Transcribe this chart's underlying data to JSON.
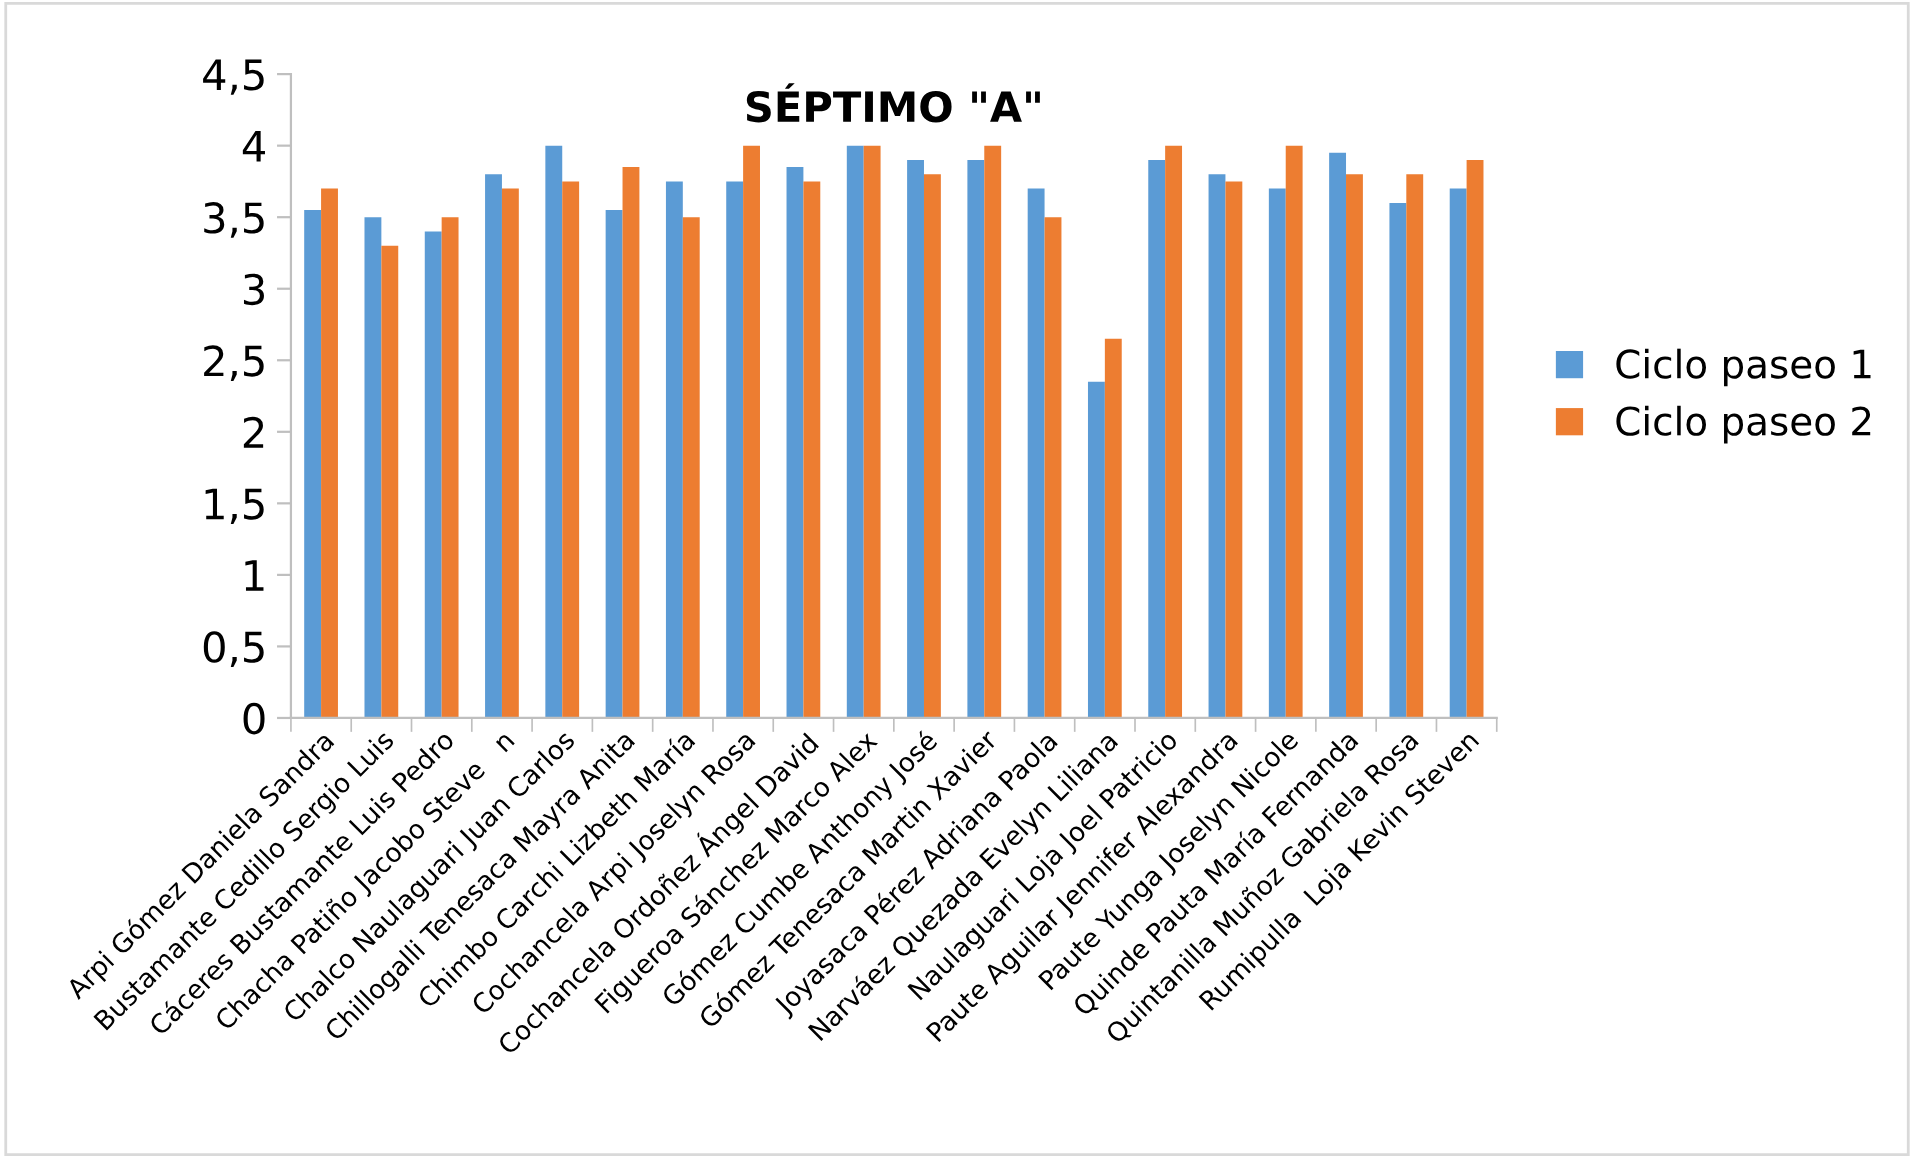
{
  "chart_data": {
    "type": "bar",
    "title": "SÉPTIMO \"A\"",
    "categories": [
      "Arpi Gómez Daniela Sandra",
      "Bustamante Cedillo Sergio Luis",
      "Cáceres Bustamante Luis Pedro",
      "Chacha Patiño Jacobo Steve   n",
      "Chalco Naulaguari Juan Carlos",
      "Chillogalli Tenesaca Mayra Anita",
      "Chimbo Carchi Lizbeth María",
      "Cochancela Arpi Joselyn Rosa",
      "Cochancela Ordoñez Ángel David",
      "Figueroa Sánchez Marco Alex",
      "Gómez Cumbe Anthony José",
      "Gómez Tenesaca Martin Xavier",
      "Joyasaca Pérez Adriana Paola",
      "Narváez Quezada Evelyn Liliana",
      "Naulaguari Loja Joel Patricio",
      "Paute Aguilar Jennifer Alexandra",
      "Paute Yunga Joselyn Nicole",
      "Quinde Pauta María Fernanda",
      "Quintanilla Muñoz Gabriela Rosa",
      "Rumipulla  Loja Kevin Steven"
    ],
    "series": [
      {
        "name": "Ciclo paseo 1",
        "color": "#5b9bd5",
        "values": [
          3.55,
          3.5,
          3.4,
          3.8,
          4,
          3.55,
          3.75,
          3.75,
          3.85,
          4,
          3.9,
          3.9,
          3.7,
          2.35,
          3.9,
          3.8,
          3.7,
          3.95,
          3.6,
          3.7
        ]
      },
      {
        "name": "Ciclo paseo 2",
        "color": "#ed7d31",
        "values": [
          3.7,
          3.3,
          3.5,
          3.7,
          3.75,
          3.85,
          3.5,
          4,
          3.75,
          4,
          3.8,
          4,
          3.5,
          2.65,
          4,
          3.75,
          4,
          3.8,
          3.8,
          3.9
        ]
      }
    ],
    "ylim": [
      0,
      4.5
    ],
    "yticks": [
      {
        "value": 0,
        "label": "0"
      },
      {
        "value": 0.5,
        "label": "0,5"
      },
      {
        "value": 1,
        "label": "1"
      },
      {
        "value": 1.5,
        "label": "1,5"
      },
      {
        "value": 2,
        "label": "2"
      },
      {
        "value": 2.5,
        "label": "2,5"
      },
      {
        "value": 3,
        "label": "3"
      },
      {
        "value": 3.5,
        "label": "3,5"
      },
      {
        "value": 4,
        "label": "4"
      },
      {
        "value": 4.5,
        "label": "4,5"
      }
    ],
    "grid": false,
    "legend": "right"
  }
}
